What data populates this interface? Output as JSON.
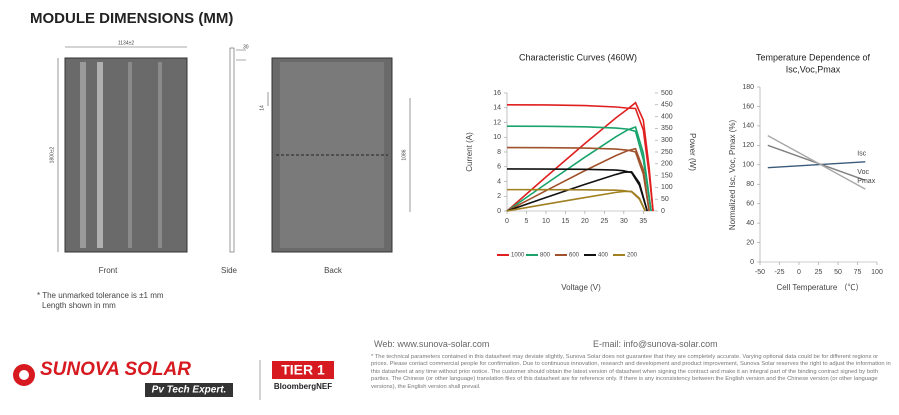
{
  "header": {
    "title": "MODULE DIMENSIONS (MM)"
  },
  "drawings": {
    "front_width": "1134±2",
    "front_height": "1800±2",
    "side_depth": "30",
    "back_offset": "14",
    "back_span": "1086",
    "front_label": "Front",
    "side_label": "Side",
    "back_label": "Back"
  },
  "notes": [
    "* The unmarked tolerance is ±1 mm",
    "Length shown in mm"
  ],
  "chart_data": [
    {
      "type": "curves",
      "title": "Characteristic Curves (460W)",
      "xlabel": "Voltage (V)",
      "ylabel": "Current (A)",
      "y2label": "Power (W)",
      "xlim": [
        0,
        38
      ],
      "xticks": [
        0,
        5,
        10,
        15,
        20,
        25,
        30,
        35
      ],
      "ylim": [
        0,
        16
      ],
      "yticks": [
        0,
        2,
        4,
        6,
        8,
        10,
        12,
        14,
        16
      ],
      "y2lim": [
        0,
        500
      ],
      "y2ticks": [
        0,
        50,
        100,
        150,
        200,
        250,
        300,
        350,
        400,
        450,
        500
      ],
      "series": [
        {
          "name": "1000",
          "color": "#e02020",
          "x": [
            0,
            10,
            20,
            28,
            31,
            33,
            35,
            36.5,
            37.5
          ],
          "current": [
            14.4,
            14.38,
            14.3,
            14.1,
            13.95,
            13.9,
            11,
            5,
            0
          ],
          "power": [
            0,
            144,
            286,
            395,
            432,
            459,
            385,
            183,
            0
          ]
        },
        {
          "name": "800",
          "color": "#1aa36b",
          "x": [
            0,
            10,
            20,
            28,
            31,
            33,
            35,
            37
          ],
          "current": [
            11.5,
            11.48,
            11.42,
            11.25,
            11.1,
            10.8,
            7,
            0
          ],
          "power": [
            0,
            115,
            228,
            315,
            344,
            356,
            245,
            0
          ]
        },
        {
          "name": "600",
          "color": "#a0522d",
          "x": [
            0,
            10,
            20,
            28,
            31,
            33,
            35,
            36.5
          ],
          "current": [
            8.6,
            8.58,
            8.53,
            8.4,
            8.25,
            8,
            5,
            0
          ],
          "power": [
            0,
            86,
            171,
            235,
            256,
            264,
            175,
            0
          ]
        },
        {
          "name": "400",
          "color": "#111111",
          "x": [
            0,
            10,
            20,
            28,
            30,
            32,
            34,
            36
          ],
          "current": [
            5.7,
            5.69,
            5.65,
            5.55,
            5.45,
            5.2,
            3.5,
            0
          ],
          "power": [
            0,
            57,
            113,
            155,
            164,
            166,
            119,
            0
          ]
        },
        {
          "name": "200",
          "color": "#a08020",
          "x": [
            0,
            10,
            20,
            28,
            30,
            32,
            34,
            35.5
          ],
          "current": [
            2.9,
            2.89,
            2.87,
            2.82,
            2.76,
            2.6,
            1.6,
            0
          ],
          "power": [
            0,
            29,
            57,
            79,
            83,
            83,
            54,
            0
          ]
        }
      ]
    },
    {
      "type": "line",
      "title": [
        "Temperature Dependence of",
        "Isc,Voc,Pmax"
      ],
      "xlabel": "Cell Temperature （℃）",
      "ylabel": "Normalized Isc, Voc, Pmax (%)",
      "xlim": [
        -50,
        100
      ],
      "xticks": [
        -50,
        -25,
        0,
        25,
        50,
        75,
        100
      ],
      "ylim": [
        0,
        180
      ],
      "yticks": [
        0,
        20,
        40,
        60,
        80,
        100,
        120,
        140,
        160,
        180
      ],
      "series": [
        {
          "name": "Isc",
          "color": "#3a5a7a",
          "x": [
            -40,
            85
          ],
          "values": [
            97,
            103
          ]
        },
        {
          "name": "Voc",
          "color": "#808080",
          "x": [
            -40,
            85
          ],
          "values": [
            120,
            84
          ]
        },
        {
          "name": "Pmax",
          "color": "#a8a8a8",
          "x": [
            -40,
            85
          ],
          "values": [
            130,
            75
          ]
        }
      ]
    }
  ],
  "footer": {
    "web": "Web: www.sunova-solar.com",
    "email": "E-mail: info@sunova-solar.com",
    "brand": "SUNOVA SOLAR",
    "slogan": "Pv Tech Expert.",
    "tier": "TIER 1",
    "tier_source": "BloombergNEF",
    "disclaimer": "* The technical parameters contained in this datasheet may deviate slightly, Sunova Solar does not guarantee that they are completely accurate. Varying optional data could be for different regions or prices. Please contact commercial people for confirmation. Due to continuous innovation, research and development and product improvement, Sunova Solar reserves the right to adjust the information in this datasheet at any time without prior notice. The customer should obtain the latest version of datasheet when signing the contract and make it an integral part of the binding contract signed by both parties. The Chinese (or other language) translation files of this datasheet are for reference only. If there is any inconsistency between the English version and the Chinese version (or other language versions), the English version shall prevail."
  }
}
